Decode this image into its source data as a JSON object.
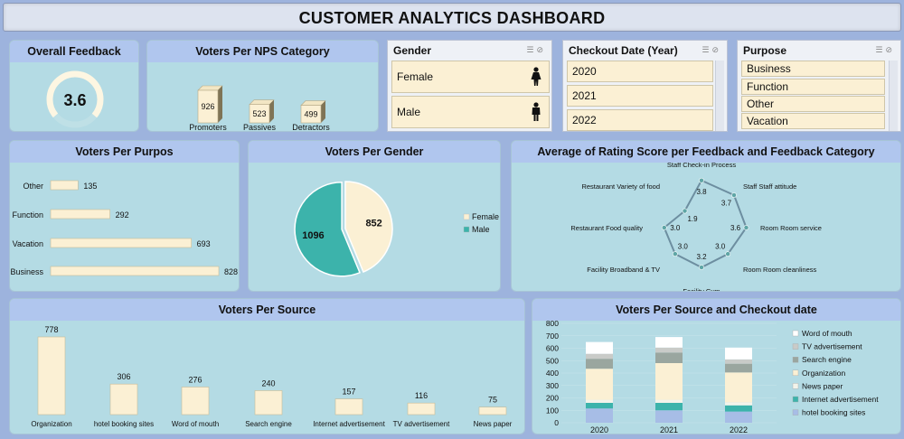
{
  "dashboard": {
    "title": "CUSTOMER ANALYTICS DASHBOARD"
  },
  "overall": {
    "title": "Overall Feedback",
    "value": "3.6",
    "fill": 0.72
  },
  "nps": {
    "title": "Voters Per NPS Category",
    "chart_data": {
      "type": "bar",
      "categories": [
        "Promoters",
        "Passives",
        "Detractors"
      ],
      "values": [
        926,
        523,
        499
      ]
    }
  },
  "gender_slicer": {
    "title": "Gender",
    "items": [
      "Female",
      "Male"
    ],
    "icons": [
      "female-icon",
      "male-icon"
    ]
  },
  "date_slicer": {
    "title": "Checkout Date (Year)",
    "items": [
      "2020",
      "2021",
      "2022"
    ]
  },
  "purpose_slicer": {
    "title": "Purpose",
    "items": [
      "Business",
      "Function",
      "Other",
      "Vacation"
    ]
  },
  "purpose_chart": {
    "title": "Voters Per Purpos",
    "chart_data": {
      "type": "bar",
      "orientation": "horizontal",
      "categories": [
        "Other",
        "Function",
        "Vacation",
        "Business"
      ],
      "values": [
        135,
        292,
        693,
        828
      ]
    }
  },
  "gender_chart": {
    "title": "Voters Per Gender",
    "chart_data": {
      "type": "pie",
      "labels": [
        "Female",
        "Male"
      ],
      "values": [
        852,
        1096
      ],
      "colors": [
        "#fbf0d4",
        "#3cb3ab"
      ],
      "legend": "right"
    }
  },
  "radar": {
    "title": "Average of Rating Score per Feedback and Feedback Category",
    "chart_data": {
      "type": "radar",
      "categories": [
        "Staff Check-in Process",
        "Staff Staff attitude",
        "Room Room service",
        "Room Room cleanliness",
        "Facility Gym",
        "Facility Broadband & TV",
        "Restaurant Food quality",
        "Restaurant Variety of food"
      ],
      "values": [
        3.8,
        3.7,
        3.6,
        3.0,
        3.2,
        3.0,
        3.0,
        1.9
      ]
    }
  },
  "source_chart": {
    "title": "Voters Per Source",
    "chart_data": {
      "type": "bar",
      "categories": [
        "Organization",
        "hotel booking sites",
        "Word of mouth",
        "Search engine",
        "Internet advertisement",
        "TV advertisement",
        "News paper"
      ],
      "values": [
        778,
        306,
        276,
        240,
        157,
        116,
        75
      ]
    }
  },
  "source_date_chart": {
    "title": "Voters Per Source and Checkout date",
    "chart_data": {
      "type": "bar",
      "stacked": true,
      "categories": [
        "2020",
        "2021",
        "2022"
      ],
      "ylim": [
        0,
        800
      ],
      "yticks": [
        "0",
        "100",
        "200",
        "300",
        "400",
        "500",
        "600",
        "700",
        "800"
      ],
      "series": [
        {
          "name": "hotel booking sites",
          "color": "#a7bde6",
          "values": [
            115,
            100,
            90
          ]
        },
        {
          "name": "Internet advertisement",
          "color": "#3cb3ab",
          "values": [
            45,
            60,
            50
          ]
        },
        {
          "name": "News paper",
          "color": "#f3f3ea",
          "values": [
            25,
            25,
            25
          ]
        },
        {
          "name": "Organization",
          "color": "#fbf0d4",
          "values": [
            250,
            295,
            240
          ]
        },
        {
          "name": "Search engine",
          "color": "#9aa69f",
          "values": [
            80,
            85,
            70
          ]
        },
        {
          "name": "TV advertisement",
          "color": "#c9cbc8",
          "values": [
            40,
            40,
            35
          ]
        },
        {
          "name": "Word of mouth",
          "color": "#ffffff",
          "values": [
            95,
            85,
            95
          ]
        }
      ],
      "legend": "right"
    }
  }
}
